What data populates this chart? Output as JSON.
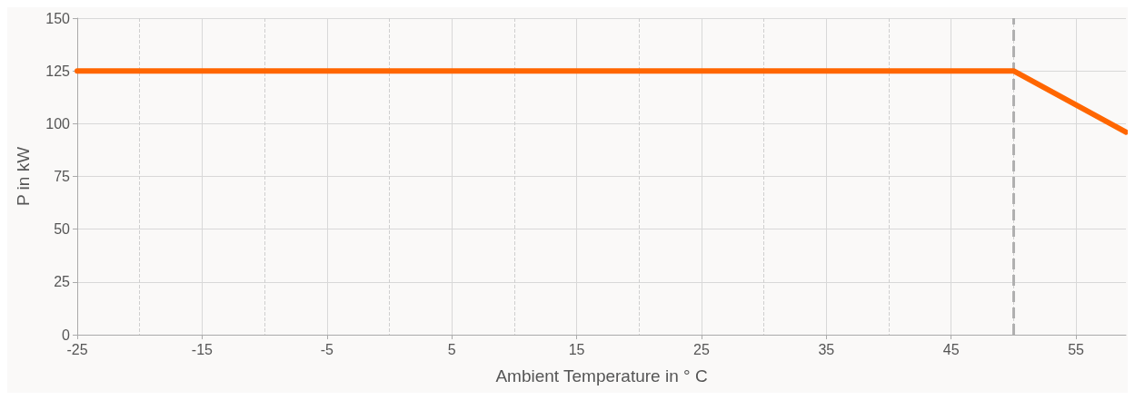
{
  "chart_data": {
    "type": "line",
    "xlabel": "Ambient Temperature in ° C",
    "ylabel": "P in kW",
    "series": [
      {
        "color": "#ff6600",
        "x": [
          -25,
          50,
          59
        ],
        "values": [
          125,
          125,
          96
        ]
      }
    ],
    "xlim": [
      -25,
      59
    ],
    "xticks": [
      -25,
      {
        "value": -20,
        "label": null
      },
      -15,
      {
        "value": -10,
        "label": null
      },
      -5,
      {
        "value": 0,
        "label": null
      },
      5,
      {
        "value": 10,
        "label": null
      },
      15,
      {
        "value": 20,
        "label": null
      },
      25,
      {
        "value": 30,
        "label": null
      },
      35,
      {
        "value": 40,
        "label": null
      },
      45,
      {
        "value": 50,
        "label": null
      },
      55
    ],
    "ylim": [
      0,
      150
    ],
    "yticks": [
      0,
      25,
      50,
      75,
      100,
      125,
      150
    ],
    "grid": true,
    "marker": "none",
    "line_style": "solid",
    "ref_lines": [
      {
        "axis": "x",
        "value": 50,
        "color": "#b0b0b0",
        "line_style": "dashed"
      }
    ]
  }
}
